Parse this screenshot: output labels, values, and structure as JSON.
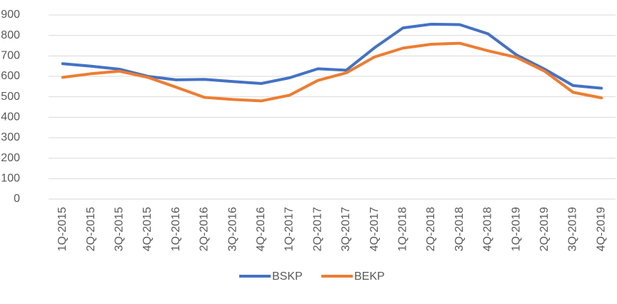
{
  "chart_data": {
    "type": "line",
    "categories": [
      "1Q-2015",
      "2Q-2015",
      "3Q-2015",
      "4Q-2015",
      "1Q-2016",
      "2Q-2016",
      "3Q-2016",
      "4Q-2016",
      "1Q-2017",
      "2Q-2017",
      "3Q-2017",
      "4Q-2017",
      "1Q-2018",
      "2Q-2018",
      "3Q-2018",
      "4Q-2018",
      "1Q-2019",
      "2Q-2019",
      "3Q-2019",
      "4Q-2019"
    ],
    "series": [
      {
        "name": "BSKP",
        "color": "#4472c4",
        "values": [
          662,
          650,
          635,
          600,
          583,
          585,
          575,
          565,
          593,
          637,
          630,
          740,
          837,
          855,
          853,
          808,
          705,
          635,
          555,
          542
        ]
      },
      {
        "name": "BEKP",
        "color": "#ed7d31",
        "values": [
          595,
          613,
          625,
          595,
          547,
          497,
          487,
          480,
          508,
          580,
          617,
          695,
          738,
          757,
          762,
          725,
          693,
          625,
          522,
          495
        ]
      }
    ],
    "ylim": [
      0,
      900
    ],
    "yticks": [
      0,
      100,
      200,
      300,
      400,
      500,
      600,
      700,
      800,
      900
    ],
    "grid": true,
    "legend": "bottom"
  }
}
